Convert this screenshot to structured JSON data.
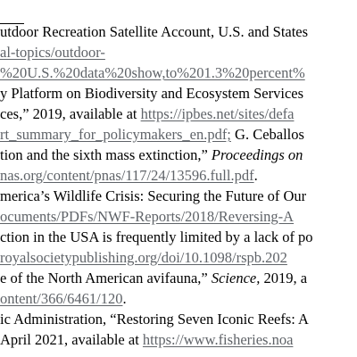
{
  "footnotes": [
    {
      "segments": [
        {
          "text": "utdoor Recreation Satellite Account, U.S. and States",
          "style": "plain"
        }
      ]
    },
    {
      "segments": [
        {
          "text": "al-topics/outdoor-",
          "style": "link"
        }
      ]
    },
    {
      "segments": [
        {
          "text": "%20U.S.%20data%20show,to%201.3%20percent%",
          "style": "link"
        }
      ]
    },
    {
      "segments": [
        {
          "text": "y Platform on Biodiversity and Ecosystem Services",
          "style": "plain"
        }
      ]
    },
    {
      "segments": [
        {
          "text": "ces,” 2019, available at ",
          "style": "plain"
        },
        {
          "text": "https://ipbes.net/sites/defa",
          "style": "link"
        }
      ]
    },
    {
      "segments": [
        {
          "text": "rt_summary_for_policymakers_en.pdf;",
          "style": "link"
        },
        {
          "text": " G. Ceballos",
          "style": "plain"
        }
      ]
    },
    {
      "segments": [
        {
          "text": "tion and the sixth mass extinction,” ",
          "style": "plain"
        },
        {
          "text": "Proceedings on",
          "style": "italic"
        }
      ]
    },
    {
      "segments": [
        {
          "text": "nas.org/content/pnas/117/24/13596.full.pdf",
          "style": "link"
        },
        {
          "text": ".",
          "style": "plain"
        }
      ]
    },
    {
      "segments": [
        {
          "text": "merica’s Wildlife Crisis: Securing the Future of Our",
          "style": "plain"
        }
      ]
    },
    {
      "segments": [
        {
          "text": "ocuments/PDFs/NWF-Reports/2018/Reversing-A",
          "style": "link"
        }
      ]
    },
    {
      "segments": [
        {
          "text": "ction in the USA is frequently limited by a lack of po",
          "style": "plain"
        }
      ]
    },
    {
      "segments": [
        {
          "text": "royalsocietypublishing.org/doi/10.1098/rspb.202",
          "style": "link"
        }
      ]
    },
    {
      "segments": [
        {
          "text": "e of the North American avifauna,” ",
          "style": "plain"
        },
        {
          "text": "Science,",
          "style": "italic"
        },
        {
          "text": " 2019, a",
          "style": "plain"
        }
      ]
    },
    {
      "segments": [
        {
          "text": "ontent/366/6461/120",
          "style": "link"
        },
        {
          "text": ".",
          "style": "plain"
        }
      ]
    },
    {
      "segments": [
        {
          "text": "ic Administration, “Restoring Seven Iconic Reefs: A",
          "style": "plain"
        }
      ]
    },
    {
      "segments": [
        {
          "text": "April 2021, available at ",
          "style": "plain"
        },
        {
          "text": "https://www.fisheries.noa",
          "style": "link"
        }
      ]
    }
  ]
}
